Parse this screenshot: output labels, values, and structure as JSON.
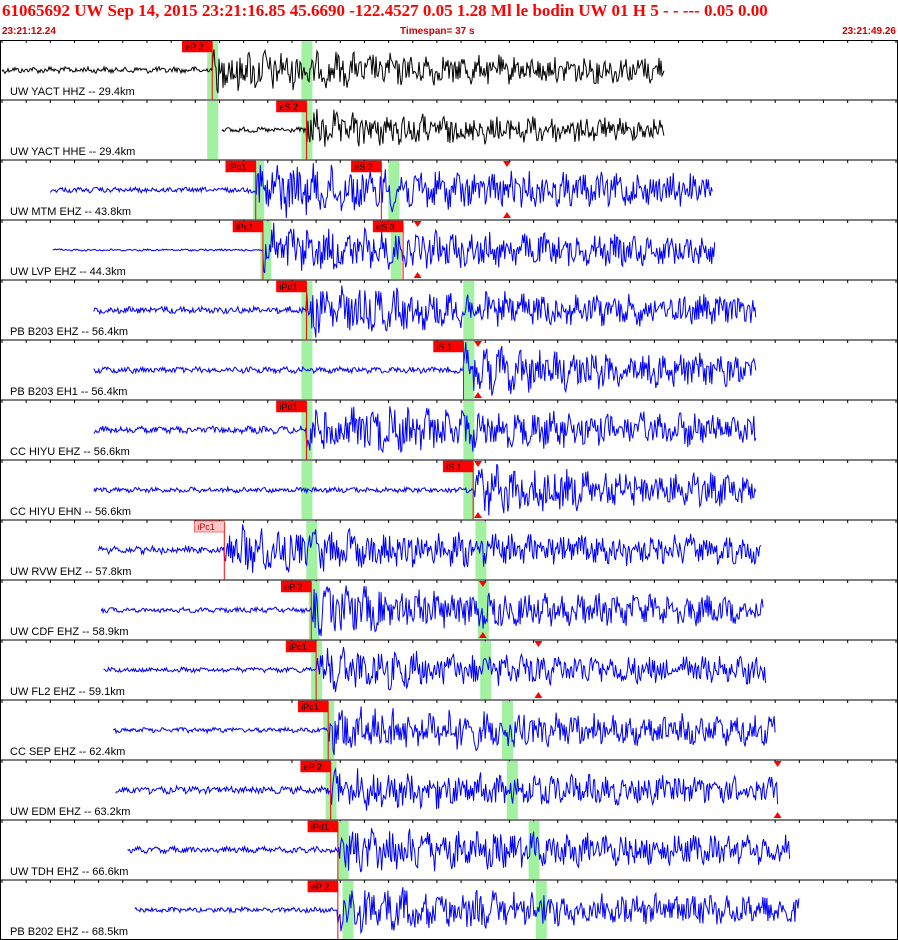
{
  "header": {
    "title": "61065692 UW Sep 14, 2015 23:21:16.85   45.6690 -122.4527  0.05 1.28 Ml le    bodin    UW 01 H    5  -  - ---  0.05 0.00",
    "start_time": "23:21:12.24",
    "timespan_label": "Timespan=  37 s",
    "end_time": "23:21:49.26"
  },
  "colors": {
    "title": "#ff0000",
    "trace_black": "#000000",
    "trace_blue": "#0000ff",
    "pick_flag": "#ff0000",
    "pick_flag_unused": "#ffc8c8",
    "predicted_window": "#90ee90",
    "grid": "#000000"
  },
  "chart_data": {
    "type": "line",
    "x_unit": "s",
    "xlim": [
      0,
      37
    ],
    "x_tick_interval_s": 1,
    "grid": "vertical-minor-ticks",
    "traces": [
      {
        "label": "UW YACT HHZ -- 29.4km",
        "color": "black",
        "start": 0,
        "end": 27.4,
        "pre_amp": 0.06,
        "post_amp": 0.45,
        "picks": [
          {
            "label": "eP 2",
            "t": 8.7,
            "flag": "red"
          }
        ],
        "green": [
          8.7,
          12.6
        ],
        "ticks": []
      },
      {
        "label": "UW YACT HHE -- 29.4km",
        "color": "black",
        "start": 9.1,
        "end": 27.4,
        "pre_amp": 0.05,
        "post_amp": 0.4,
        "picks": [
          {
            "label": "eS 2",
            "t": 12.6,
            "flag": "red"
          }
        ],
        "green": [
          8.7,
          12.6
        ],
        "ticks": []
      },
      {
        "label": "UW MTM EHZ -- 43.8km",
        "color": "blue",
        "start": 2.0,
        "end": 29.4,
        "pre_amp": 0.05,
        "post_amp": 0.55,
        "picks": [
          {
            "label": "iPc1",
            "t": 10.5,
            "flag": "red"
          },
          {
            "label": "eS 2",
            "t": 15.7,
            "flag": "red"
          }
        ],
        "green": [
          10.6,
          16.2
        ],
        "ticks": [
          20.9
        ]
      },
      {
        "label": "UW LVP EHZ -- 44.3km",
        "color": "blue",
        "start": 2.1,
        "end": 29.5,
        "pre_amp": 0.02,
        "post_amp": 0.5,
        "picks": [
          {
            "label": "iPc1",
            "t": 10.8,
            "flag": "red"
          },
          {
            "label": "eS 3",
            "t": 16.6,
            "flag": "red"
          }
        ],
        "green": [
          10.9,
          16.3
        ],
        "ticks": [
          17.2
        ]
      },
      {
        "label": "PB B203 EHZ -- 56.4km",
        "color": "blue",
        "start": 3.8,
        "end": 31.2,
        "pre_amp": 0.07,
        "post_amp": 0.5,
        "picks": [
          {
            "label": "iPd1",
            "t": 12.6,
            "flag": "red"
          }
        ],
        "green": [
          12.6,
          19.3
        ],
        "ticks": []
      },
      {
        "label": "PB B203 EH1 -- 56.4km",
        "color": "blue",
        "start": 3.8,
        "end": 31.2,
        "pre_amp": 0.06,
        "post_amp": 0.5,
        "picks": [
          {
            "label": "iS 1",
            "t": 19.1,
            "flag": "red"
          }
        ],
        "green": [
          12.6,
          19.3
        ],
        "ticks": [
          19.7
        ]
      },
      {
        "label": "CC HIYU EHZ -- 56.6km",
        "color": "blue",
        "start": 3.8,
        "end": 31.2,
        "pre_amp": 0.07,
        "post_amp": 0.55,
        "picks": [
          {
            "label": "iPd1",
            "t": 12.6,
            "flag": "red"
          }
        ],
        "green": [
          12.6,
          19.3
        ],
        "ticks": []
      },
      {
        "label": "CC HIYU EHN -- 56.6km",
        "color": "blue",
        "start": 3.8,
        "end": 31.2,
        "pre_amp": 0.05,
        "post_amp": 0.5,
        "picks": [
          {
            "label": "iS 1",
            "t": 19.5,
            "flag": "red"
          }
        ],
        "green": [
          12.6,
          19.3
        ],
        "ticks": [
          19.7
        ]
      },
      {
        "label": "UW RVW EHZ -- 57.8km",
        "color": "blue",
        "start": 4.0,
        "end": 31.4,
        "pre_amp": 0.07,
        "post_amp": 0.5,
        "picks": [
          {
            "label": "iPc1",
            "t": 9.2,
            "flag": "pink"
          }
        ],
        "green": [
          12.8,
          19.8
        ],
        "ticks": []
      },
      {
        "label": "UW CDF EHZ -- 58.9km",
        "color": "blue",
        "start": 4.1,
        "end": 31.5,
        "pre_amp": 0.05,
        "post_amp": 0.5,
        "picks": [
          {
            "label": "eP 2",
            "t": 12.8,
            "flag": "red"
          }
        ],
        "green": [
          12.9,
          19.9
        ],
        "ticks": [
          19.9
        ]
      },
      {
        "label": "UW FL2 EHZ -- 59.1km",
        "color": "blue",
        "start": 4.2,
        "end": 31.6,
        "pre_amp": 0.05,
        "post_amp": 0.45,
        "picks": [
          {
            "label": "iPc1",
            "t": 13.0,
            "flag": "red"
          }
        ],
        "green": [
          13.0,
          20.0
        ],
        "ticks": [
          22.2
        ]
      },
      {
        "label": "CC SEP EHZ -- 62.4km",
        "color": "blue",
        "start": 4.6,
        "end": 32.0,
        "pre_amp": 0.05,
        "post_amp": 0.5,
        "picks": [
          {
            "label": "iPc1",
            "t": 13.5,
            "flag": "red"
          }
        ],
        "green": [
          13.5,
          20.9
        ],
        "ticks": []
      },
      {
        "label": "UW EDM EHZ -- 63.2km",
        "color": "blue",
        "start": 4.7,
        "end": 32.1,
        "pre_amp": 0.07,
        "post_amp": 0.45,
        "picks": [
          {
            "label": "eP 2",
            "t": 13.6,
            "flag": "red"
          }
        ],
        "green": [
          13.6,
          21.1
        ],
        "ticks": [
          32.1
        ]
      },
      {
        "label": "UW TDH EHZ -- 66.6km",
        "color": "blue",
        "start": 5.2,
        "end": 32.6,
        "pre_amp": 0.06,
        "post_amp": 0.5,
        "picks": [
          {
            "label": "iPd1",
            "t": 13.9,
            "flag": "red"
          }
        ],
        "green": [
          14.1,
          22.0
        ],
        "ticks": []
      },
      {
        "label": "PB B202 EHZ -- 68.5km",
        "color": "blue",
        "start": 5.5,
        "end": 33.0,
        "pre_amp": 0.05,
        "post_amp": 0.5,
        "picks": [
          {
            "label": "eP 2",
            "t": 13.9,
            "flag": "red"
          }
        ],
        "green": [
          14.3,
          22.3
        ],
        "ticks": []
      }
    ]
  }
}
